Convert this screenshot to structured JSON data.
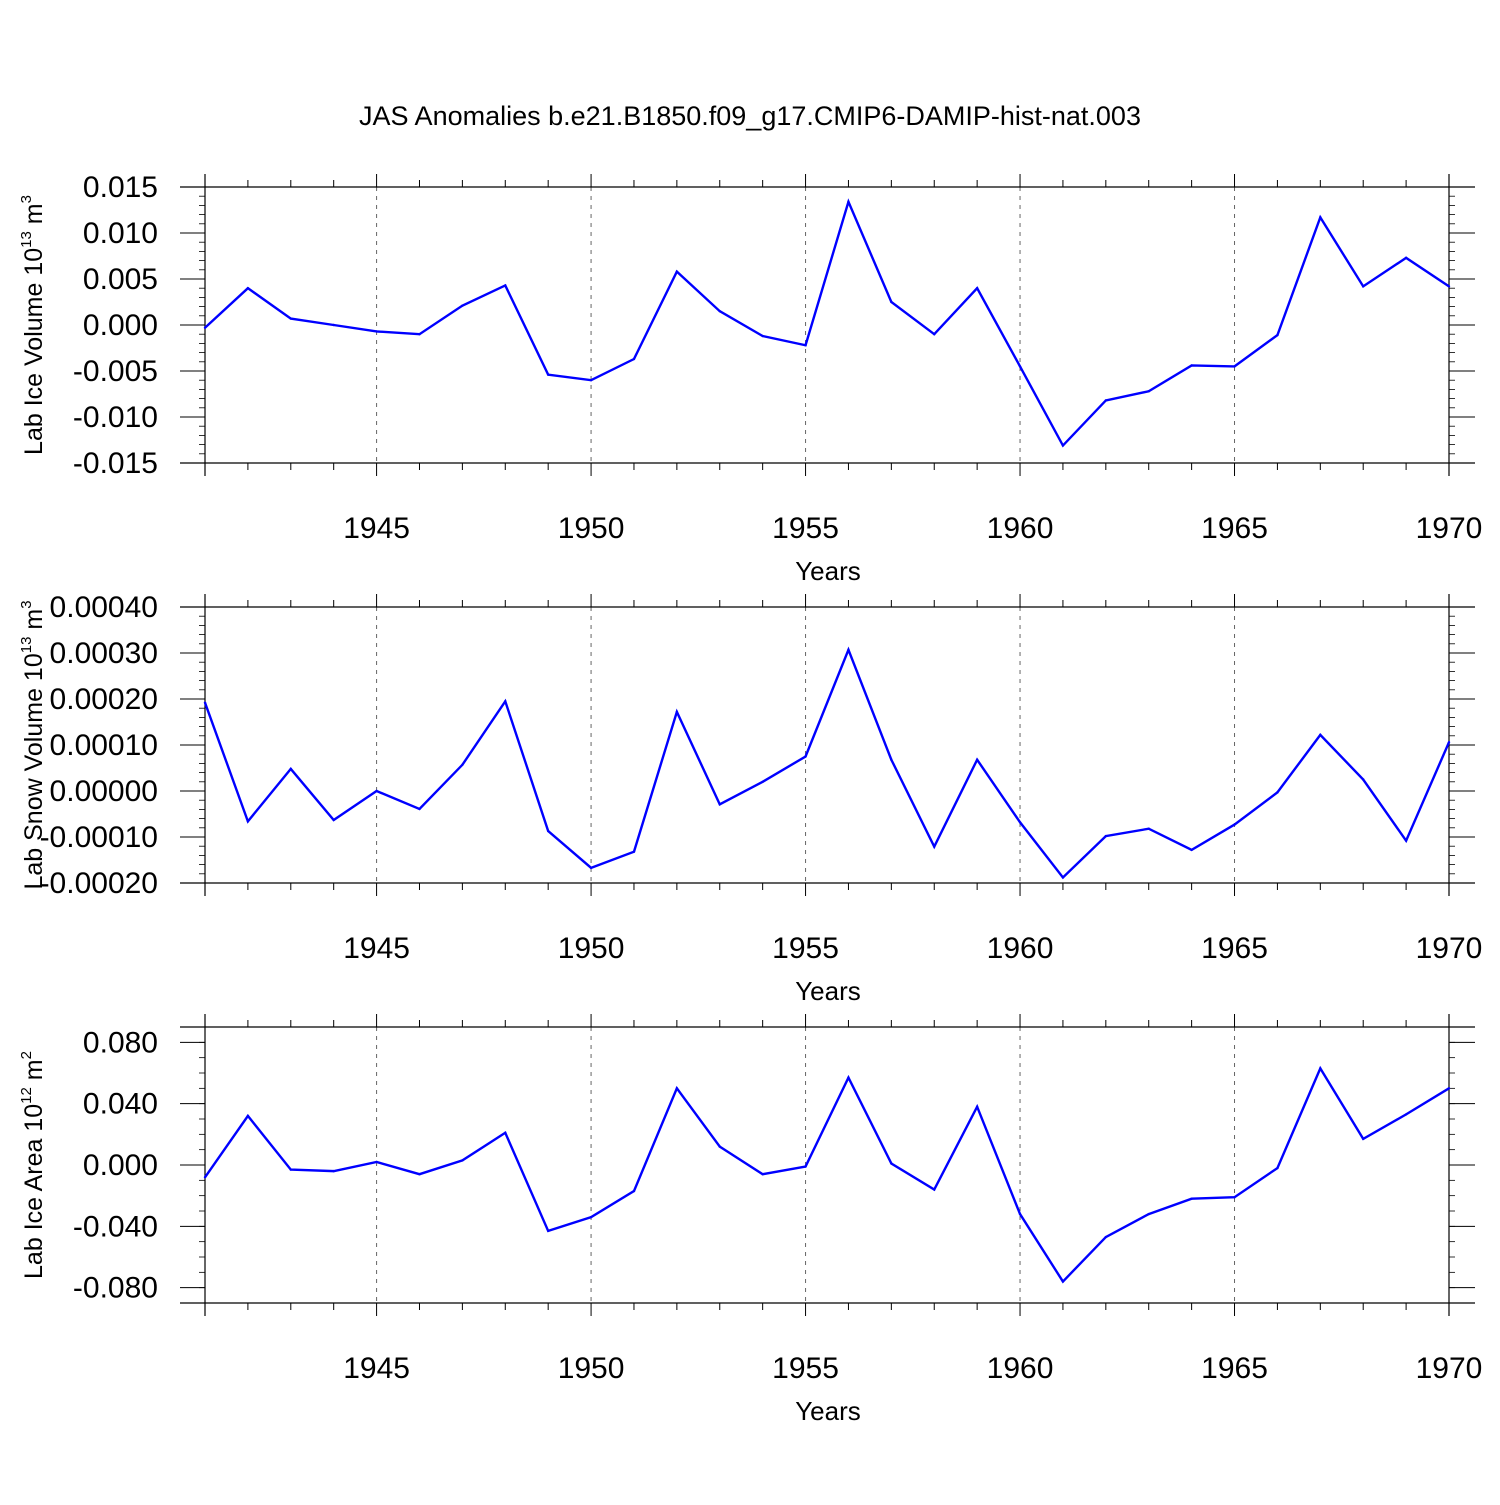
{
  "figure": {
    "title": "JAS Anomalies b.e21.B1850.f09_g17.CMIP6-DAMIP-hist-nat.003"
  },
  "colors": {
    "line": "#0000ff",
    "axis": "#000000",
    "gridline": "#666666",
    "background": "#ffffff"
  },
  "chart_data": [
    {
      "type": "line",
      "title": "",
      "ylabel": "Lab Ice Volume 10",
      "ylabel_sup_exp": "13",
      "ylabel_unit": " m",
      "ylabel_unit_exp": "3",
      "xlabel": "Years",
      "xlim": [
        1941,
        1970
      ],
      "ylim": [
        -0.015,
        0.015
      ],
      "y_ticks": [
        0.015,
        0.01,
        0.005,
        0.0,
        -0.005,
        -0.01,
        -0.015
      ],
      "y_tick_labels": [
        "0.015",
        "0.010",
        "0.005",
        "0.000",
        "-0.005",
        "-0.010",
        "-0.015"
      ],
      "y_minor_step": 0.001,
      "x_ticks": [
        1945,
        1950,
        1955,
        1960,
        1965,
        1970
      ],
      "x_tick_labels": [
        "1945",
        "1950",
        "1955",
        "1960",
        "1965",
        "1970"
      ],
      "x_gridlines": [
        1945,
        1950,
        1955,
        1960,
        1965
      ],
      "grid": "x-dashed",
      "x": [
        1941,
        1942,
        1943,
        1944,
        1945,
        1946,
        1947,
        1948,
        1949,
        1950,
        1951,
        1952,
        1953,
        1954,
        1955,
        1956,
        1957,
        1958,
        1959,
        1960,
        1961,
        1962,
        1963,
        1964,
        1965,
        1966,
        1967,
        1968,
        1969,
        1970
      ],
      "series": [
        {
          "values": [
            -0.0003,
            0.004,
            0.0007,
            0.0,
            -0.0007,
            -0.001,
            0.0021,
            0.0043,
            -0.0054,
            -0.006,
            -0.0037,
            0.0058,
            0.0015,
            -0.0012,
            -0.0022,
            0.0134,
            0.0025,
            -0.001,
            0.004,
            -0.0045,
            -0.0131,
            -0.0082,
            -0.0072,
            -0.0044,
            -0.0045,
            -0.0011,
            0.0117,
            0.0042,
            0.0073,
            0.0042
          ]
        }
      ]
    },
    {
      "type": "line",
      "title": "",
      "ylabel": "Lab Snow Volume 10",
      "ylabel_sup_exp": "13",
      "ylabel_unit": " m",
      "ylabel_unit_exp": "3",
      "xlabel": "Years",
      "xlim": [
        1941,
        1970
      ],
      "ylim": [
        -0.0002,
        0.0004
      ],
      "y_ticks": [
        0.0004,
        0.0003,
        0.0002,
        0.0001,
        0.0,
        -0.0001,
        -0.0002
      ],
      "y_tick_labels": [
        "0.00040",
        "0.00030",
        "0.00020",
        "0.00010",
        "0.00000",
        "-0.00010",
        "-0.00020"
      ],
      "y_minor_step": 2e-05,
      "x_ticks": [
        1945,
        1950,
        1955,
        1960,
        1965,
        1970
      ],
      "x_tick_labels": [
        "1945",
        "1950",
        "1955",
        "1960",
        "1965",
        "1970"
      ],
      "x_gridlines": [
        1945,
        1950,
        1955,
        1960,
        1965
      ],
      "grid": "x-dashed",
      "x": [
        1941,
        1942,
        1943,
        1944,
        1945,
        1946,
        1947,
        1948,
        1949,
        1950,
        1951,
        1952,
        1953,
        1954,
        1955,
        1956,
        1957,
        1958,
        1959,
        1960,
        1961,
        1962,
        1963,
        1964,
        1965,
        1966,
        1967,
        1968,
        1969,
        1970
      ],
      "series": [
        {
          "values": [
            0.000192,
            -6.6e-05,
            4.8e-05,
            -6.3e-05,
            0.0,
            -3.9e-05,
            5.7e-05,
            0.000195,
            -8.7e-05,
            -0.000167,
            -0.000132,
            0.000172,
            -2.9e-05,
            2e-05,
            7.5e-05,
            0.000307,
            6.8e-05,
            -0.000121,
            6.8e-05,
            -6.8e-05,
            -0.000188,
            -9.8e-05,
            -8.2e-05,
            -0.000128,
            -7.3e-05,
            -3e-06,
            0.000122,
            2.5e-05,
            -0.000108,
            0.000106
          ]
        }
      ]
    },
    {
      "type": "line",
      "title": "",
      "ylabel": "Lab Ice Area 10",
      "ylabel_sup_exp": "12",
      "ylabel_unit": " m",
      "ylabel_unit_exp": "2",
      "xlabel": "Years",
      "xlim": [
        1941,
        1970
      ],
      "ylim": [
        -0.09,
        0.09
      ],
      "y_ticks": [
        0.08,
        0.04,
        0.0,
        -0.04,
        -0.08
      ],
      "y_tick_labels": [
        "0.080",
        "0.040",
        "0.000",
        "-0.040",
        "-0.080"
      ],
      "y_minor_step": 0.01,
      "x_ticks": [
        1945,
        1950,
        1955,
        1960,
        1965,
        1970
      ],
      "x_tick_labels": [
        "1945",
        "1950",
        "1955",
        "1960",
        "1965",
        "1970"
      ],
      "x_gridlines": [
        1945,
        1950,
        1955,
        1960,
        1965
      ],
      "grid": "x-dashed",
      "x": [
        1941,
        1942,
        1943,
        1944,
        1945,
        1946,
        1947,
        1948,
        1949,
        1950,
        1951,
        1952,
        1953,
        1954,
        1955,
        1956,
        1957,
        1958,
        1959,
        1960,
        1961,
        1962,
        1963,
        1964,
        1965,
        1966,
        1967,
        1968,
        1969,
        1970
      ],
      "series": [
        {
          "values": [
            -0.008,
            0.032,
            -0.003,
            -0.004,
            0.002,
            -0.006,
            0.003,
            0.021,
            -0.043,
            -0.034,
            -0.017,
            0.05,
            0.012,
            -0.006,
            -0.001,
            0.057,
            0.001,
            -0.016,
            0.038,
            -0.032,
            -0.076,
            -0.047,
            -0.032,
            -0.022,
            -0.021,
            -0.002,
            0.063,
            0.017,
            0.033,
            0.05
          ]
        }
      ]
    }
  ]
}
